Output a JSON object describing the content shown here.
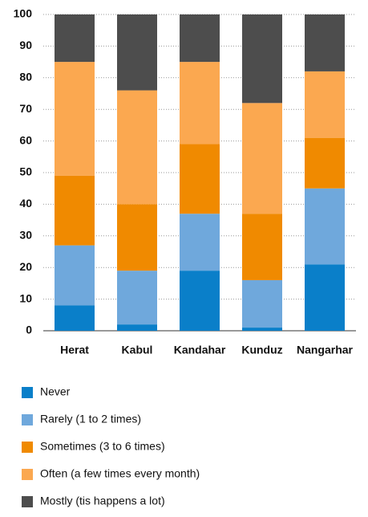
{
  "chart_data": {
    "type": "stacked_bar",
    "categories": [
      "Herat",
      "Kabul",
      "Kandahar",
      "Kunduz",
      "Nangarhar"
    ],
    "series": [
      {
        "name": "Never",
        "color": "#0a7fc9",
        "values": [
          8,
          2,
          19,
          1,
          21
        ]
      },
      {
        "name": "Rarely (1 to 2 times)",
        "color": "#6fa8dc",
        "values": [
          19,
          17,
          18,
          15,
          24
        ]
      },
      {
        "name": "Sometimes (3 to 6 times)",
        "color": "#f08a00",
        "values": [
          22,
          21,
          22,
          21,
          16
        ]
      },
      {
        "name": "Often (a few times every month)",
        "color": "#fba850",
        "values": [
          36,
          36,
          26,
          35,
          21
        ]
      },
      {
        "name": "Mostly (tis happens a lot)",
        "color": "#4d4d4d",
        "values": [
          15,
          24,
          15,
          28,
          18
        ]
      }
    ],
    "ylim": [
      0,
      100
    ],
    "yticks": [
      0,
      10,
      20,
      30,
      40,
      50,
      60,
      70,
      80,
      90,
      100
    ],
    "grid": true
  }
}
